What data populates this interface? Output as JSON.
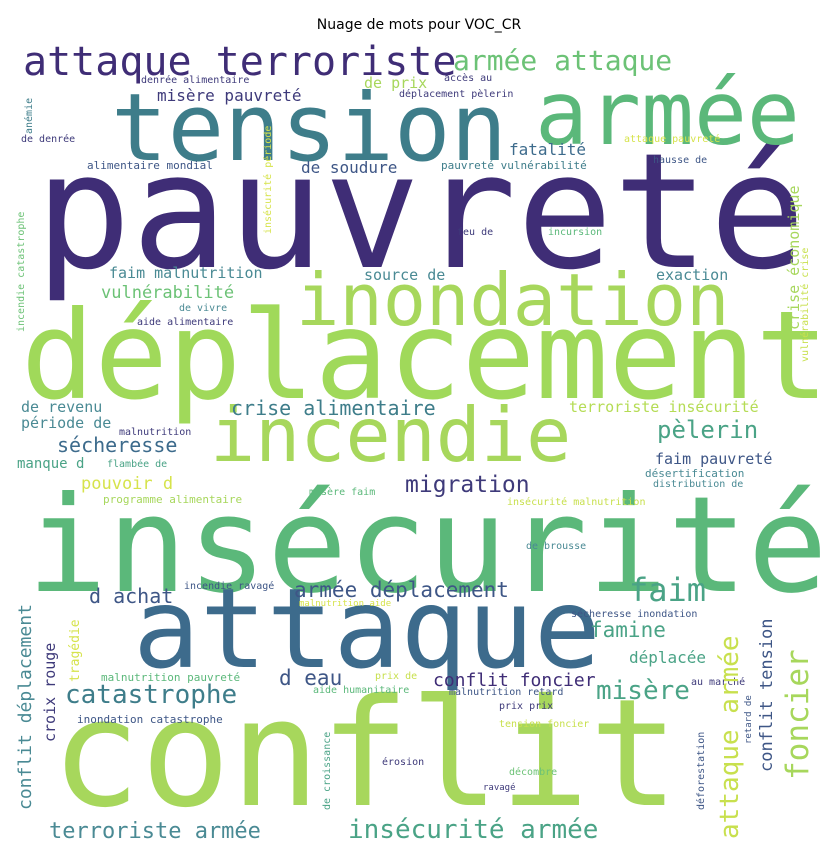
{
  "title": "Nuage de mots pour VOC_CR",
  "words": [
    {
      "text": "pauvreté",
      "color": "#3f2d76"
    },
    {
      "text": "déplacement",
      "color": "#a0d95a"
    },
    {
      "text": "insécurité",
      "color": "#5bb87a"
    },
    {
      "text": "conflit",
      "color": "#a7d75c"
    },
    {
      "text": "attaque",
      "color": "#3d6b8c"
    },
    {
      "text": "tension",
      "color": "#3e7d8a"
    },
    {
      "text": "armée",
      "color": "#5bb87a"
    },
    {
      "text": "inondation",
      "color": "#a7d75c"
    },
    {
      "text": "incendie",
      "color": "#a7d75c"
    },
    {
      "text": "attaque terroriste",
      "color": "#3f2d76"
    },
    {
      "text": "armée attaque",
      "color": "#6cc276"
    },
    {
      "text": "catastrophe",
      "color": "#3e7d8a"
    },
    {
      "text": "migration",
      "color": "#3e3a7a"
    },
    {
      "text": "crise alimentaire",
      "color": "#3e7d8a"
    },
    {
      "text": "pèlerin",
      "color": "#4aa386"
    },
    {
      "text": "sécheresse",
      "color": "#3d6b8c"
    },
    {
      "text": "faim",
      "color": "#4aa386"
    },
    {
      "text": "famine",
      "color": "#4aa386"
    },
    {
      "text": "misère",
      "color": "#4aa386"
    },
    {
      "text": "armée déplacement",
      "color": "#3e5686"
    },
    {
      "text": "insécurité armée",
      "color": "#4aa386"
    },
    {
      "text": "terroriste armée",
      "color": "#4a8a94"
    },
    {
      "text": "conflit foncier",
      "color": "#3f2d76"
    },
    {
      "text": "d achat",
      "color": "#3e5686"
    },
    {
      "text": "d eau",
      "color": "#3e5686"
    },
    {
      "text": "déplacée",
      "color": "#4aa386"
    },
    {
      "text": "misère pauvreté",
      "color": "#3e3a7a"
    },
    {
      "text": "fatalité",
      "color": "#3d6b8c"
    },
    {
      "text": "de soudure",
      "color": "#3e5686"
    },
    {
      "text": "faim malnutrition",
      "color": "#4a8a94"
    },
    {
      "text": "vulnérabilité",
      "color": "#6cc276"
    },
    {
      "text": "source de",
      "color": "#4a8a94"
    },
    {
      "text": "exaction",
      "color": "#4a8a94"
    },
    {
      "text": "pouvoir d",
      "color": "#d6e34b"
    },
    {
      "text": "de revenu",
      "color": "#4a8a94"
    },
    {
      "text": "période de",
      "color": "#4a8a94"
    },
    {
      "text": "terroriste insécurité",
      "color": "#b5dc55"
    },
    {
      "text": "faim pauvreté",
      "color": "#3e5686"
    },
    {
      "text": "de prix",
      "color": "#a7d75c"
    },
    {
      "text": "manque d",
      "color": "#4aa386"
    },
    {
      "text": "malnutrition",
      "color": "#3e3a7a"
    },
    {
      "text": "flambée de",
      "color": "#4aa386"
    },
    {
      "text": "programme alimentaire",
      "color": "#a7d75c"
    },
    {
      "text": "misère faim",
      "color": "#5bb87a"
    },
    {
      "text": "insécurité malnutrition",
      "color": "#c8e04e"
    },
    {
      "text": "désertification",
      "color": "#4a8a94"
    },
    {
      "text": "distribution de",
      "color": "#4a8a94"
    },
    {
      "text": "de brousse",
      "color": "#4a8a94"
    },
    {
      "text": "incendie ravagé",
      "color": "#3e5686"
    },
    {
      "text": "malnutrition aide",
      "color": "#d6e34b"
    },
    {
      "text": "sécheresse inondation",
      "color": "#3e5686"
    },
    {
      "text": "malnutrition pauvreté",
      "color": "#5bb87a"
    },
    {
      "text": "aide humanitaire",
      "color": "#5bb87a"
    },
    {
      "text": "malnutrition retard",
      "color": "#3e5686"
    },
    {
      "text": "prix de",
      "color": "#c8e04e"
    },
    {
      "text": "au marché",
      "color": "#3e3a7a"
    },
    {
      "text": "inondation catastrophe",
      "color": "#3e5686"
    },
    {
      "text": "prix prix",
      "color": "#3e3a7a"
    },
    {
      "text": "tension foncier",
      "color": "#c8e04e"
    },
    {
      "text": "érosion",
      "color": "#3e3a7a"
    },
    {
      "text": "décombre",
      "color": "#6cc276"
    },
    {
      "text": "ravagé",
      "color": "#3e3a7a"
    },
    {
      "text": "denrée alimentaire",
      "color": "#3e3a7a"
    },
    {
      "text": "accès au",
      "color": "#3e3a7a"
    },
    {
      "text": "déplacement pèlerin",
      "color": "#3e3a7a"
    },
    {
      "text": "de denrée",
      "color": "#3e3a7a"
    },
    {
      "text": "alimentaire mondial",
      "color": "#3e5686"
    },
    {
      "text": "pauvreté vulnérabilité",
      "color": "#3e7d8a"
    },
    {
      "text": "attaque pauvreté",
      "color": "#d6e34b"
    },
    {
      "text": "hausse de",
      "color": "#3e5686"
    },
    {
      "text": "feu de",
      "color": "#3e3a7a"
    },
    {
      "text": "incursion",
      "color": "#5bb87a"
    },
    {
      "text": "de vivre",
      "color": "#4a8a94"
    },
    {
      "text": "aide alimentaire",
      "color": "#3e3a7a"
    },
    {
      "text": "foncier",
      "color": "#a7d75c"
    },
    {
      "text": "attaque armée",
      "color": "#c8e04e"
    },
    {
      "text": "conflit tension",
      "color": "#3e5686"
    },
    {
      "text": "conflit déplacement",
      "color": "#4a8a94"
    },
    {
      "text": "croix rouge",
      "color": "#3e3a7a"
    },
    {
      "text": "tragédie",
      "color": "#d6e34b"
    },
    {
      "text": "crise économique",
      "color": "#a7d75c"
    },
    {
      "text": "vulnérabilité crise",
      "color": "#c8e04e"
    },
    {
      "text": "anémie",
      "color": "#3e7d8a"
    },
    {
      "text": "incendie catastrophe",
      "color": "#6cc276"
    },
    {
      "text": "insécurité période",
      "color": "#d6e34b"
    },
    {
      "text": "de croissance",
      "color": "#4aa386"
    },
    {
      "text": "retard de",
      "color": "#3e5686"
    },
    {
      "text": "déforestation",
      "color": "#3e5686"
    }
  ]
}
